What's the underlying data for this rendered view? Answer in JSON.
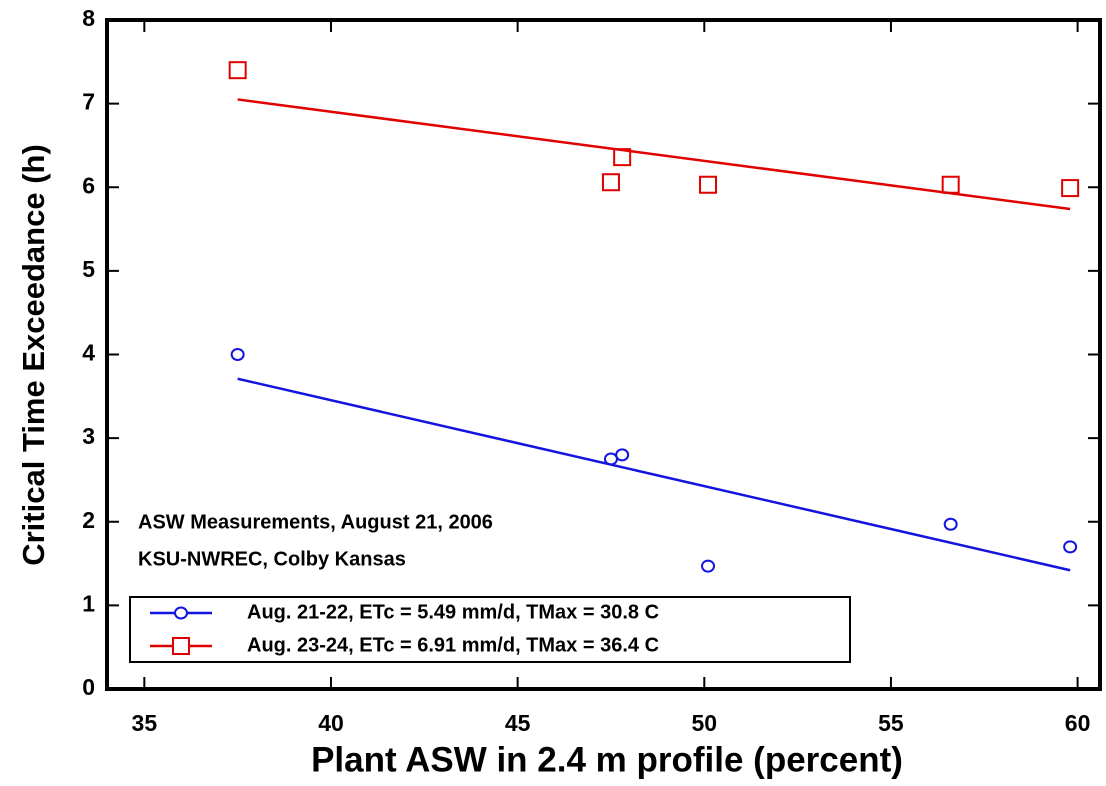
{
  "chart_data": {
    "type": "scatter",
    "x_label": "Plant ASW in 2.4 m profile (percent)",
    "y_label": "Critical Time Exceedance (h)",
    "annotations": [
      "ASW Measurements, August 21, 2006",
      "KSU-NWREC, Colby Kansas"
    ],
    "xlim": [
      34,
      60.6
    ],
    "xticks": [
      35,
      40,
      45,
      50,
      55,
      60
    ],
    "ylim": [
      0,
      8
    ],
    "yticks": [
      0,
      1,
      2,
      3,
      4,
      5,
      6,
      7,
      8
    ],
    "legend": "bottom-left",
    "series": [
      {
        "name": "Aug. 21-22,  ETc = 5.49 mm/d, TMax = 30.8 C",
        "color": "#1414e0",
        "marker": "circle",
        "x": [
          37.5,
          47.5,
          47.8,
          50.1,
          56.6,
          59.8
        ],
        "values": [
          4.0,
          2.75,
          2.8,
          1.47,
          1.97,
          1.7
        ],
        "trend_x": [
          37.5,
          59.8
        ],
        "trend_values": [
          3.71,
          1.42
        ]
      },
      {
        "name": "Aug. 23-24,  ETc = 6.91 mm/d, TMax = 36.4 C",
        "color": "#e00000",
        "marker": "square",
        "x": [
          37.5,
          47.5,
          47.8,
          50.1,
          56.6,
          59.8
        ],
        "values": [
          7.4,
          6.06,
          6.36,
          6.03,
          6.03,
          5.99
        ],
        "trend_x": [
          37.5,
          59.8
        ],
        "trend_values": [
          7.05,
          5.74
        ]
      }
    ]
  }
}
